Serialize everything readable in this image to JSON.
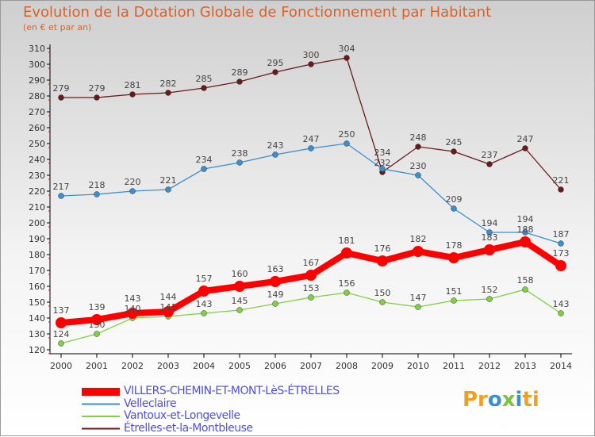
{
  "title": "Evolution de la Dotation Globale de Fonctionnement par Habitant",
  "subtitle": "(en € et par an)",
  "logo": "Proxiti",
  "chart_data": {
    "type": "line",
    "title": "Evolution de la Dotation Globale de Fonctionnement par Habitant",
    "ylabel": "(en € et par an)",
    "x": [
      2000,
      2001,
      2002,
      2003,
      2004,
      2005,
      2006,
      2007,
      2008,
      2009,
      2010,
      2011,
      2012,
      2013,
      2014
    ],
    "ylim": [
      120,
      310
    ],
    "yticks": [
      120,
      130,
      140,
      150,
      160,
      170,
      180,
      190,
      200,
      210,
      220,
      230,
      240,
      250,
      260,
      270,
      280,
      290,
      300,
      310
    ],
    "grid": false,
    "legend": "bottom-left",
    "series": [
      {
        "name": "VILLERS-CHEMIN-ET-MONT-LèS-ÉTRELLES",
        "color": "#ff0000",
        "values": [
          137,
          139,
          143,
          144,
          157,
          160,
          163,
          167,
          181,
          176,
          182,
          178,
          183,
          188,
          173
        ]
      },
      {
        "name": "Velleclaire",
        "color": "#3a8fd0",
        "values": [
          217,
          218,
          220,
          221,
          234,
          238,
          243,
          247,
          250,
          234,
          230,
          209,
          194,
          194,
          187
        ]
      },
      {
        "name": "Vantoux-et-Longevelle",
        "color": "#80d040",
        "values": [
          124,
          130,
          140,
          141,
          143,
          145,
          149,
          153,
          156,
          150,
          147,
          151,
          152,
          158,
          143
        ]
      },
      {
        "name": "Étrelles-et-la-Montbleuse",
        "color": "#6a1a1a",
        "values": [
          279,
          279,
          281,
          282,
          285,
          289,
          295,
          300,
          304,
          232,
          248,
          245,
          237,
          247,
          221
        ]
      }
    ]
  }
}
